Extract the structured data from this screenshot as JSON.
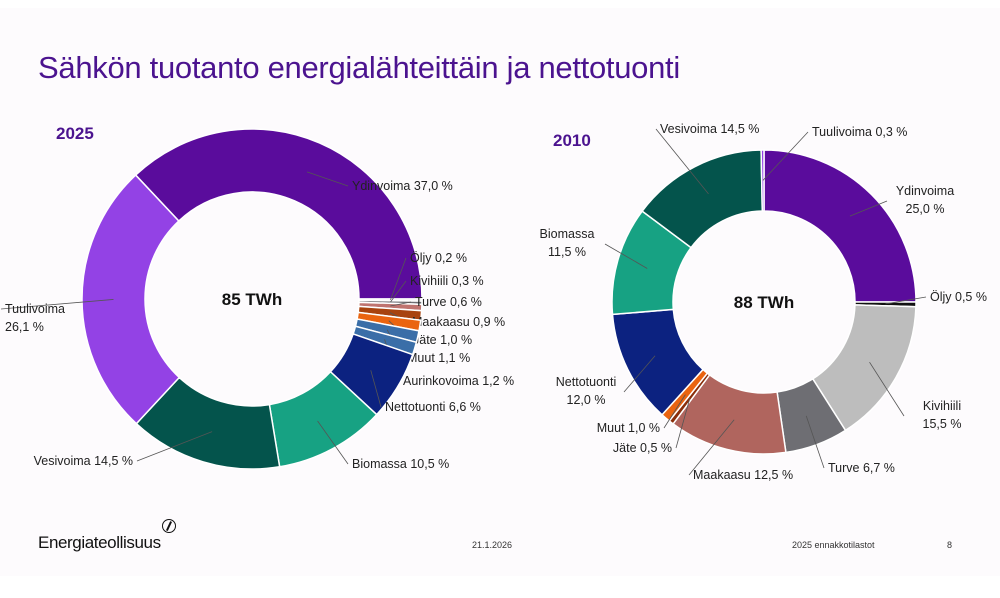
{
  "title": "Sähkön tuotanto energialähteittäin ja nettotuonti",
  "footer": {
    "logo_text": "Energiateollisuus",
    "date": "21.1.2026",
    "source": "2025 ennakkotilastot",
    "page": "8"
  },
  "chart_data": [
    {
      "type": "pie",
      "variant": "donut",
      "title": "2025",
      "center_label": "85 TWh",
      "unit": "%",
      "slices": [
        {
          "name": "Ydinvoima",
          "value": 37.0,
          "label": "Ydinvoima 37,0 %",
          "color": "#5a0c9c"
        },
        {
          "name": "Öljy",
          "value": 0.2,
          "label": "Öljy 0,2 %",
          "color": "#e6e6e6"
        },
        {
          "name": "Kivihiili",
          "value": 0.3,
          "label": "Kivihiili 0,3 %",
          "color": "#6e6e73"
        },
        {
          "name": "Turve",
          "value": 0.6,
          "label": "Turve 0,6 %",
          "color": "#bf7470"
        },
        {
          "name": "Maakaasu",
          "value": 0.9,
          "label": "Maakaasu 0,9 %",
          "color": "#a8430f"
        },
        {
          "name": "Jäte",
          "value": 1.0,
          "label": "Jäte 1,0 %",
          "color": "#ea6410"
        },
        {
          "name": "Muut",
          "value": 1.1,
          "label": "Muut 1,1 %",
          "color": "#3a6ea8"
        },
        {
          "name": "Aurinkovoima",
          "value": 1.2,
          "label": "Aurinkovoima 1,2 %",
          "color": "#3a6ea8"
        },
        {
          "name": "Nettotuonti",
          "value": 6.6,
          "label": "Nettotuonti 6,6 %",
          "color": "#0c2280"
        },
        {
          "name": "Biomassa",
          "value": 10.5,
          "label": "Biomassa 10,5 %",
          "color": "#17a283"
        },
        {
          "name": "Vesivoima",
          "value": 14.5,
          "label": "Vesivoima 14,5 %",
          "color": "#04544c"
        },
        {
          "name": "Tuulivoima",
          "value": 26.1,
          "label": "Tuulivoima 26,1 %",
          "color": "#9342e5"
        }
      ]
    },
    {
      "type": "pie",
      "variant": "donut",
      "title": "2010",
      "center_label": "88 TWh",
      "unit": "%",
      "slices": [
        {
          "name": "Ydinvoima",
          "value": 25.0,
          "label": "Ydinvoima 25,0 %",
          "color": "#5a0c9c"
        },
        {
          "name": "Öljy",
          "value": 0.5,
          "label": "Öljy 0,5 %",
          "color": "#111111"
        },
        {
          "name": "Kivihiili",
          "value": 15.5,
          "label": "Kivihiili 15,5 %",
          "color": "#bdbdbd"
        },
        {
          "name": "Turve",
          "value": 6.7,
          "label": "Turve 6,7 %",
          "color": "#6e6e73"
        },
        {
          "name": "Maakaasu",
          "value": 12.5,
          "label": "Maakaasu 12,5 %",
          "color": "#b0655e"
        },
        {
          "name": "Jäte",
          "value": 0.5,
          "label": "Jäte 0,5 %",
          "color": "#8a2e0a"
        },
        {
          "name": "Muut",
          "value": 1.0,
          "label": "Muut 1,0 %",
          "color": "#ea6410"
        },
        {
          "name": "Nettotuonti",
          "value": 12.0,
          "label": "Nettotuonti 12,0 %",
          "color": "#0c2280"
        },
        {
          "name": "Biomassa",
          "value": 11.5,
          "label": "Biomassa 11,5 %",
          "color": "#17a283"
        },
        {
          "name": "Vesivoima",
          "value": 14.5,
          "label": "Vesivoima 14,5 %",
          "color": "#04544c"
        },
        {
          "name": "Tuulivoima",
          "value": 0.3,
          "label": "Tuulivoima 0,3 %",
          "color": "#9342e5"
        }
      ]
    }
  ]
}
